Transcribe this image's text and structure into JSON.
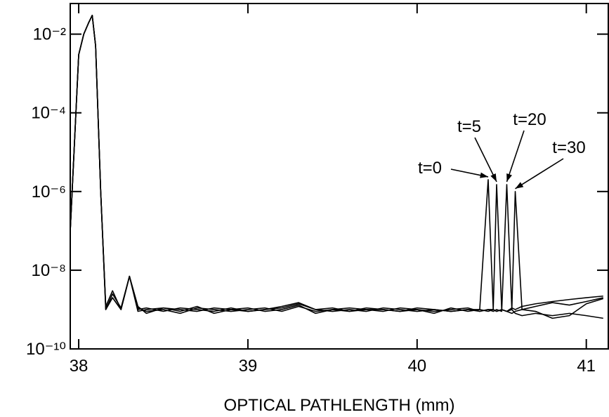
{
  "chart_data": {
    "type": "line",
    "xlabel": "OPTICAL PATHLENGTH (mm)",
    "x": [
      37.95,
      38.0,
      38.03,
      38.06,
      38.08,
      38.1,
      38.13,
      38.16,
      38.2,
      38.25,
      38.3,
      38.35,
      38.4,
      38.5,
      38.6,
      38.7,
      38.8,
      38.9,
      39.0,
      39.1,
      39.2,
      39.3,
      39.4,
      39.5,
      39.6,
      39.7,
      39.8,
      39.9,
      40.0,
      40.1,
      40.2,
      40.3,
      40.37,
      40.42,
      40.45,
      40.47,
      40.5,
      40.53,
      40.56,
      40.58,
      40.62,
      40.7,
      40.8,
      40.9,
      41.0,
      41.1
    ],
    "series": [
      {
        "name": "t=0",
        "color": "#000000",
        "values": [
          1e-07,
          0.003,
          0.01,
          0.02,
          0.03,
          0.005,
          1e-06,
          1.2e-09,
          3e-09,
          1e-09,
          7e-09,
          1.2e-09,
          8e-10,
          1.1e-09,
          9e-10,
          1.2e-09,
          8e-10,
          1e-09,
          1.1e-09,
          9e-10,
          1e-09,
          1.3e-09,
          8e-10,
          1e-09,
          9e-10,
          1.1e-09,
          1e-09,
          9e-10,
          1e-09,
          8e-10,
          1.1e-09,
          9e-10,
          1e-09,
          2e-06,
          1e-09,
          9e-10,
          1e-09,
          9e-10,
          1.1e-09,
          1e-09,
          1.2e-09,
          1.4e-09,
          1.6e-09,
          1.8e-09,
          2e-09,
          2.2e-09
        ]
      },
      {
        "name": "t=5",
        "color": "#000000",
        "values": [
          1e-07,
          0.003,
          0.01,
          0.02,
          0.03,
          0.005,
          1e-06,
          1e-09,
          2.5e-09,
          1.1e-09,
          7e-09,
          1e-09,
          1.1e-09,
          9e-10,
          1.1e-09,
          1e-09,
          9e-10,
          1.1e-09,
          9e-10,
          1e-09,
          1.2e-09,
          1.5e-09,
          1e-09,
          9e-10,
          1e-09,
          9e-10,
          1.1e-09,
          1e-09,
          9e-10,
          1e-09,
          9e-10,
          1e-09,
          9e-10,
          1e-09,
          1e-09,
          1.5e-06,
          1e-09,
          9e-10,
          8e-10,
          9e-10,
          1e-09,
          1.2e-09,
          1.5e-09,
          1.3e-09,
          1.6e-09,
          2e-09
        ]
      },
      {
        "name": "t=20",
        "color": "#000000",
        "values": [
          1e-07,
          0.003,
          0.01,
          0.02,
          0.03,
          0.005,
          1e-06,
          1.1e-09,
          2e-09,
          1e-09,
          7e-09,
          1.1e-09,
          9e-10,
          1e-09,
          8e-10,
          1.1e-09,
          1e-09,
          9e-10,
          1e-09,
          1.1e-09,
          9e-10,
          1.2e-09,
          9e-10,
          1e-09,
          1.1e-09,
          1e-09,
          9e-10,
          1.1e-09,
          1e-09,
          9e-10,
          1e-09,
          1.1e-09,
          9e-10,
          1e-09,
          9e-10,
          1e-09,
          9e-10,
          1.5e-06,
          1e-09,
          8e-10,
          7e-10,
          8e-10,
          7e-10,
          8e-10,
          7e-10,
          6e-10
        ]
      },
      {
        "name": "t=30",
        "color": "#000000",
        "values": [
          1e-07,
          0.003,
          0.01,
          0.02,
          0.03,
          0.005,
          1e-06,
          1e-09,
          2e-09,
          1e-09,
          7e-09,
          9e-10,
          1e-09,
          1.1e-09,
          1e-09,
          9e-10,
          1.1e-09,
          1e-09,
          9e-10,
          1e-09,
          1.1e-09,
          1.4e-09,
          1e-09,
          1.1e-09,
          9e-10,
          1e-09,
          1e-09,
          9e-10,
          1.1e-09,
          1e-09,
          9e-10,
          1e-09,
          1e-09,
          9e-10,
          1e-09,
          9e-10,
          1e-09,
          9e-10,
          1e-09,
          1e-06,
          1e-09,
          9e-10,
          6e-10,
          7e-10,
          1.4e-09,
          1.9e-09
        ]
      }
    ],
    "xlim": [
      37.95,
      41.13
    ],
    "xticks": [
      38,
      39,
      40,
      41
    ],
    "ylim": [
      1e-10,
      0.06
    ],
    "yticks": [
      {
        "value": 1e-10,
        "label": "10⁻¹⁰"
      },
      {
        "value": 1e-08,
        "label": "10⁻⁸"
      },
      {
        "value": 1e-06,
        "label": "10⁻⁶"
      },
      {
        "value": 0.0001,
        "label": "10⁻⁴"
      },
      {
        "value": 0.01,
        "label": "10⁻²"
      }
    ],
    "yscale": "log"
  }
}
